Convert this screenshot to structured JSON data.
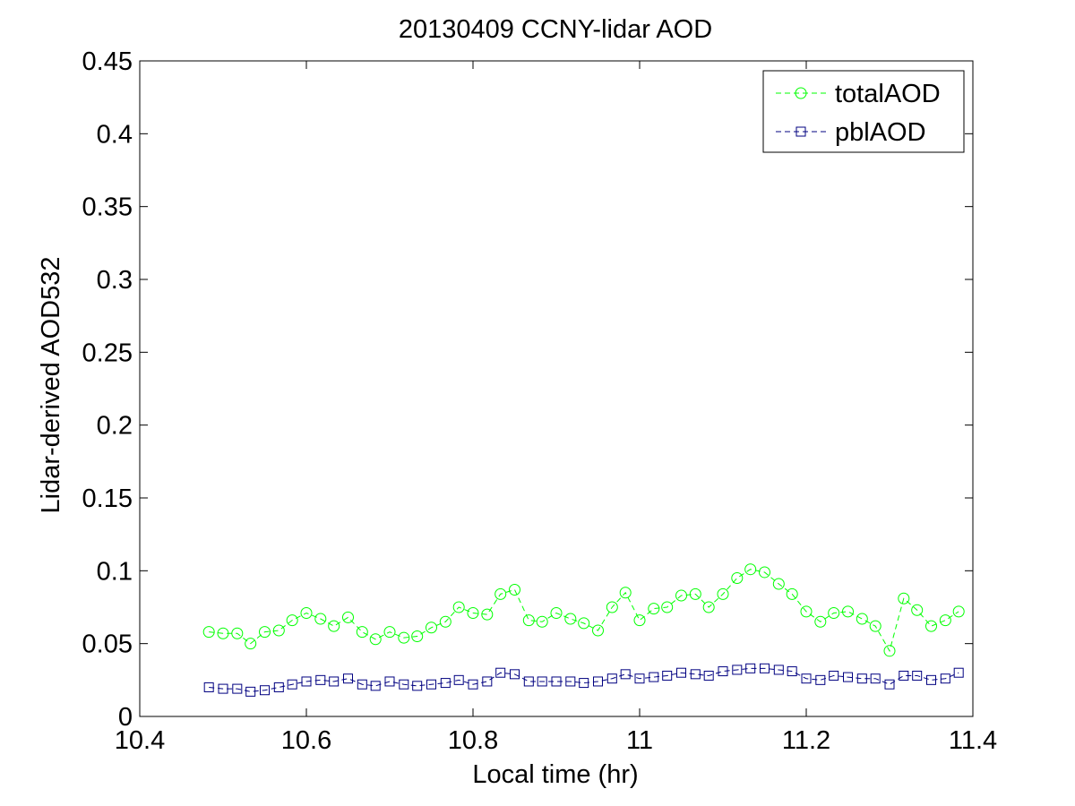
{
  "chart_data": {
    "type": "line",
    "title": "20130409 CCNY-lidar AOD",
    "xlabel": "Local time (hr)",
    "ylabel": "Lidar-derived AOD532",
    "xlim": [
      10.4,
      11.4
    ],
    "ylim": [
      0,
      0.45
    ],
    "xticks": [
      "10.4",
      "10.6",
      "10.8",
      "11",
      "11.2",
      "11.4"
    ],
    "yticks": [
      "0",
      "0.05",
      "0.1",
      "0.15",
      "0.2",
      "0.25",
      "0.3",
      "0.35",
      "0.4",
      "0.45"
    ],
    "grid": false,
    "legend_position": "top-right",
    "x": [
      10.483,
      10.5,
      10.517,
      10.533,
      10.55,
      10.567,
      10.583,
      10.6,
      10.617,
      10.633,
      10.65,
      10.667,
      10.683,
      10.7,
      10.717,
      10.733,
      10.75,
      10.767,
      10.783,
      10.8,
      10.817,
      10.833,
      10.85,
      10.867,
      10.883,
      10.9,
      10.917,
      10.933,
      10.95,
      10.967,
      10.983,
      11.0,
      11.017,
      11.033,
      11.05,
      11.067,
      11.083,
      11.1,
      11.117,
      11.133,
      11.15,
      11.167,
      11.183,
      11.2,
      11.217,
      11.233,
      11.25,
      11.267,
      11.283,
      11.3,
      11.317,
      11.333,
      11.35,
      11.367,
      11.383
    ],
    "series": [
      {
        "name": "totalAOD",
        "color": "#00ff00",
        "marker": "circle",
        "line_style": "dashed",
        "values": [
          0.058,
          0.057,
          0.057,
          0.05,
          0.058,
          0.059,
          0.066,
          0.071,
          0.067,
          0.062,
          0.068,
          0.058,
          0.053,
          0.058,
          0.054,
          0.055,
          0.061,
          0.065,
          0.075,
          0.071,
          0.07,
          0.084,
          0.087,
          0.066,
          0.065,
          0.071,
          0.067,
          0.064,
          0.059,
          0.075,
          0.085,
          0.066,
          0.074,
          0.075,
          0.083,
          0.084,
          0.075,
          0.084,
          0.095,
          0.101,
          0.099,
          0.091,
          0.084,
          0.072,
          0.065,
          0.071,
          0.072,
          0.067,
          0.062,
          0.045,
          0.081,
          0.073,
          0.062,
          0.066,
          0.072
        ]
      },
      {
        "name": "pblAOD",
        "color": "#000080",
        "marker": "square",
        "line_style": "dashed",
        "values": [
          0.02,
          0.019,
          0.019,
          0.017,
          0.018,
          0.02,
          0.022,
          0.024,
          0.025,
          0.024,
          0.026,
          0.022,
          0.021,
          0.024,
          0.022,
          0.021,
          0.022,
          0.023,
          0.025,
          0.022,
          0.024,
          0.03,
          0.029,
          0.024,
          0.024,
          0.024,
          0.024,
          0.023,
          0.024,
          0.026,
          0.029,
          0.026,
          0.027,
          0.028,
          0.03,
          0.029,
          0.028,
          0.031,
          0.032,
          0.033,
          0.033,
          0.032,
          0.031,
          0.026,
          0.025,
          0.028,
          0.027,
          0.026,
          0.026,
          0.022,
          0.028,
          0.028,
          0.025,
          0.026,
          0.03
        ]
      }
    ]
  }
}
